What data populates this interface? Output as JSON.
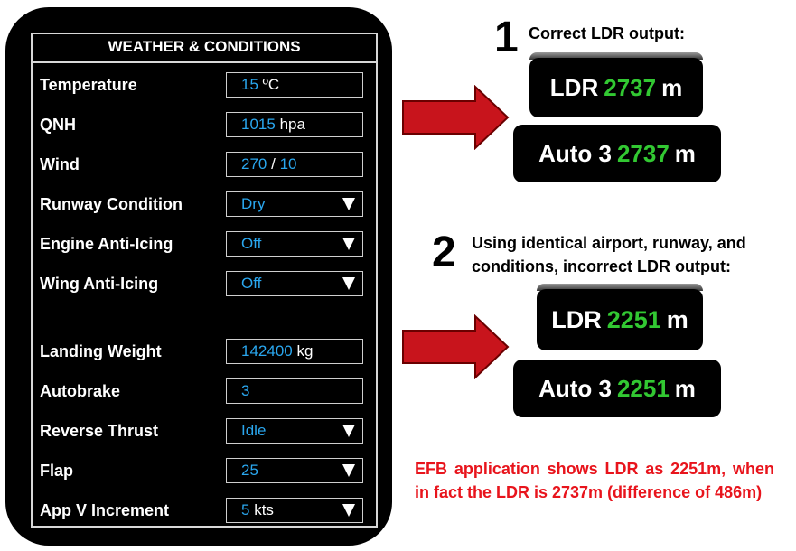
{
  "panel": {
    "title": "WEATHER & CONDITIONS",
    "rows": [
      {
        "label": "Temperature",
        "value": "15",
        "unit": "ºC"
      },
      {
        "label": "QNH",
        "value": "1015",
        "unit": "hpa"
      },
      {
        "label": "Wind",
        "value": "270",
        "sep": "/",
        "value2": "10"
      },
      {
        "label": "Runway Condition",
        "value": "Dry",
        "dropdown": true
      },
      {
        "label": "Engine Anti-Icing",
        "value": "Off",
        "dropdown": true
      },
      {
        "label": "Wing Anti-Icing",
        "value": "Off",
        "dropdown": true
      },
      {
        "label": "Landing Weight",
        "value": "142400",
        "unit": "kg"
      },
      {
        "label": "Autobrake",
        "value": "3"
      },
      {
        "label": "Reverse Thrust",
        "value": "Idle",
        "dropdown": true
      },
      {
        "label": "Flap",
        "value": "25",
        "dropdown": true
      },
      {
        "label": "App V Increment",
        "value": "5",
        "unit": "kts",
        "dropdown": true
      }
    ]
  },
  "step1": {
    "number": "1",
    "text": "Correct LDR output:",
    "ldr": {
      "prefix": "LDR",
      "value": "2737",
      "unit": "m"
    },
    "auto": {
      "prefix": "Auto 3",
      "value": "2737",
      "unit": "m"
    }
  },
  "step2": {
    "number": "2",
    "text_line1": "Using identical airport, runway, and",
    "text_line2": "conditions, incorrect LDR output:",
    "ldr": {
      "prefix": "LDR",
      "value": "2251",
      "unit": "m"
    },
    "auto": {
      "prefix": "Auto 3",
      "value": "2251",
      "unit": "m"
    }
  },
  "note": "EFB application shows LDR as 2251m, when in fact the LDR is 2737m (difference of 486m)",
  "colors": {
    "value_blue": "#2aa7ef",
    "ldr_green": "#32c832",
    "arrow_red": "#c8141c",
    "note_red": "#e8141c"
  }
}
